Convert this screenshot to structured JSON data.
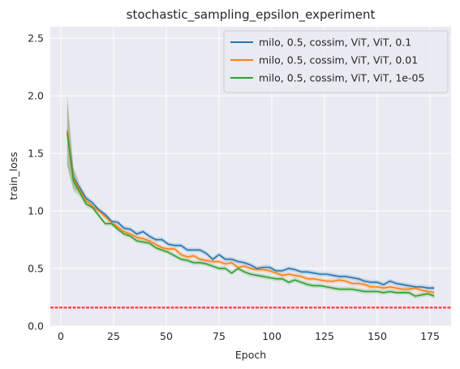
{
  "chart_data": {
    "type": "line",
    "title": "stochastic_sampling_epsilon_experiment",
    "xlabel": "Epoch",
    "ylabel": "train_loss",
    "xlim": [
      -5,
      185
    ],
    "ylim": [
      0,
      2.6
    ],
    "xticks": [
      0,
      25,
      50,
      75,
      100,
      125,
      150,
      175
    ],
    "yticks": [
      0.0,
      0.5,
      1.0,
      1.5,
      2.0,
      2.5
    ],
    "x": [
      3,
      6,
      9,
      12,
      15,
      18,
      21,
      24,
      27,
      30,
      33,
      36,
      39,
      42,
      45,
      48,
      51,
      54,
      57,
      60,
      63,
      66,
      69,
      72,
      75,
      78,
      81,
      84,
      87,
      90,
      93,
      96,
      99,
      102,
      105,
      108,
      111,
      114,
      117,
      120,
      123,
      126,
      129,
      132,
      135,
      138,
      141,
      144,
      147,
      150,
      153,
      156,
      159,
      162,
      165,
      168,
      171,
      174,
      177
    ],
    "grid": true,
    "background": "#eaeaf2",
    "legend_position": "top-right",
    "series": [
      {
        "name": "milo, 0.5, cossim, ViT, ViT, 0.1",
        "color": "#1f77b4",
        "values": [
          1.7,
          1.29,
          1.2,
          1.11,
          1.07,
          1.01,
          0.97,
          0.91,
          0.9,
          0.85,
          0.84,
          0.8,
          0.82,
          0.78,
          0.75,
          0.75,
          0.71,
          0.7,
          0.7,
          0.66,
          0.66,
          0.66,
          0.63,
          0.58,
          0.62,
          0.58,
          0.58,
          0.56,
          0.55,
          0.53,
          0.5,
          0.51,
          0.51,
          0.48,
          0.48,
          0.5,
          0.49,
          0.47,
          0.47,
          0.46,
          0.45,
          0.45,
          0.44,
          0.43,
          0.43,
          0.42,
          0.41,
          0.39,
          0.38,
          0.38,
          0.36,
          0.39,
          0.37,
          0.36,
          0.35,
          0.34,
          0.34,
          0.33,
          0.33
        ]
      },
      {
        "name": "milo, 0.5, cossim, ViT, ViT, 0.01",
        "color": "#ff7f0e",
        "values": [
          1.7,
          1.28,
          1.18,
          1.09,
          1.04,
          1.0,
          0.95,
          0.9,
          0.86,
          0.82,
          0.8,
          0.77,
          0.76,
          0.74,
          0.71,
          0.68,
          0.67,
          0.67,
          0.62,
          0.6,
          0.61,
          0.58,
          0.57,
          0.56,
          0.56,
          0.54,
          0.55,
          0.51,
          0.52,
          0.5,
          0.49,
          0.49,
          0.48,
          0.46,
          0.44,
          0.45,
          0.44,
          0.43,
          0.41,
          0.41,
          0.4,
          0.39,
          0.39,
          0.4,
          0.39,
          0.37,
          0.37,
          0.36,
          0.34,
          0.34,
          0.33,
          0.34,
          0.33,
          0.32,
          0.32,
          0.33,
          0.31,
          0.3,
          0.29
        ]
      },
      {
        "name": "milo, 0.5, cossim, ViT, ViT, 1e-05",
        "color": "#2ca02c",
        "values": [
          1.68,
          1.26,
          1.16,
          1.06,
          1.03,
          0.96,
          0.89,
          0.89,
          0.84,
          0.8,
          0.78,
          0.74,
          0.73,
          0.72,
          0.68,
          0.66,
          0.64,
          0.61,
          0.58,
          0.57,
          0.55,
          0.55,
          0.54,
          0.52,
          0.5,
          0.5,
          0.46,
          0.5,
          0.47,
          0.45,
          0.44,
          0.43,
          0.42,
          0.41,
          0.41,
          0.38,
          0.4,
          0.38,
          0.36,
          0.35,
          0.35,
          0.34,
          0.33,
          0.32,
          0.32,
          0.32,
          0.31,
          0.3,
          0.3,
          0.3,
          0.29,
          0.3,
          0.29,
          0.29,
          0.29,
          0.26,
          0.27,
          0.28,
          0.26
        ]
      }
    ],
    "reference_line": {
      "y": 0.16,
      "color": "#ff4d4d",
      "style": "dashed-thick"
    }
  }
}
